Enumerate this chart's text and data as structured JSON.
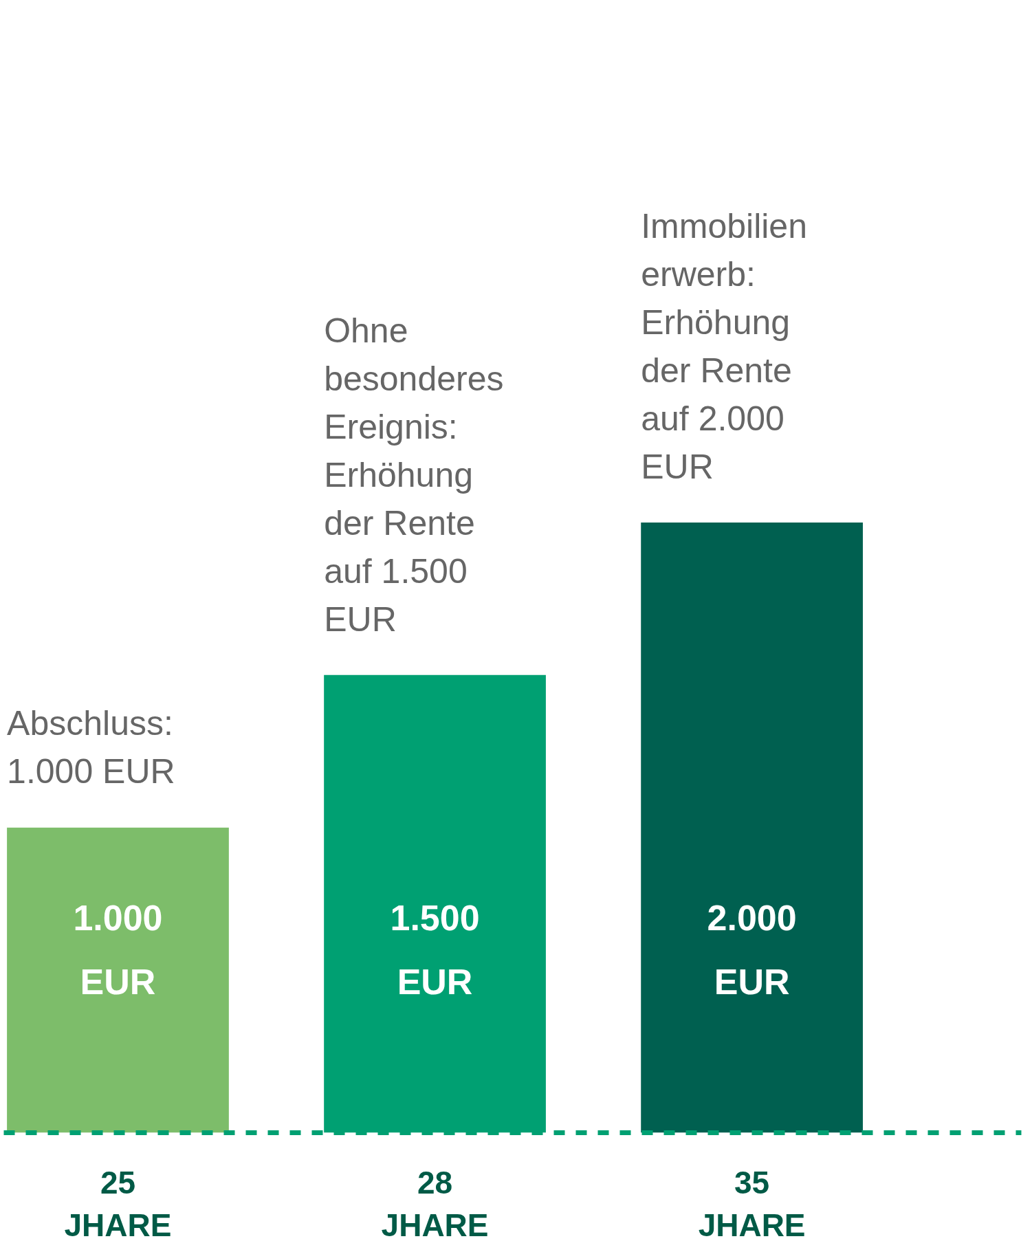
{
  "chart_data": {
    "type": "bar",
    "categories": [
      "25\nJHARE",
      "28\nJHARE",
      "35\nJHARE"
    ],
    "values": [
      1000,
      1500,
      2000
    ],
    "colors": [
      "#7dbd6a",
      "#00a072",
      "#006050"
    ],
    "value_labels": [
      "1.000\nEUR",
      "1.500\nEUR",
      "2.000\nEUR"
    ],
    "annotations": [
      "Abschluss:\n1.000 EUR",
      "Ohne\nbesonderes\nEreignis:\nErhöhung\nder Rente\nauf 1.500\nEUR",
      "Immobilien\nerwerb:\nErhöhung\nder Rente\nauf 2.000\nEUR"
    ]
  }
}
